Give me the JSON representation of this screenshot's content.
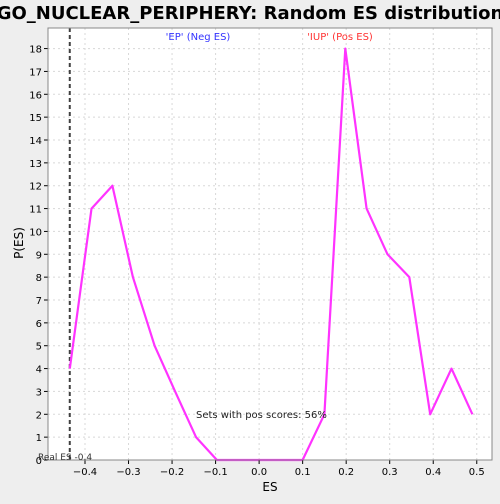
{
  "colors": {
    "background": "#eeeeee",
    "plot_background": "#ffffff",
    "line": "#ff33ff",
    "neg_label": "#3333ff",
    "pos_label": "#ff3333",
    "grid": "#d8d8d8",
    "marker_line": "#404040"
  },
  "chart_data": {
    "type": "line",
    "title": "GO_NUCLEAR_PERIPHERY: Random ES distribution",
    "xlabel": "ES",
    "ylabel": "P(ES)",
    "xlim": [
      -0.485,
      0.535
    ],
    "ylim": [
      0,
      18.9
    ],
    "grid": true,
    "x_ticks": [
      -0.4,
      -0.3,
      -0.2,
      -0.1,
      0.0,
      0.1,
      0.2,
      0.3,
      0.4,
      0.5
    ],
    "x_tick_labels": [
      "−0.4",
      "−0.3",
      "−0.2",
      "−0.1",
      "0.0",
      "0.1",
      "0.2",
      "0.3",
      "0.4",
      "0.5"
    ],
    "y_ticks": [
      0,
      1,
      2,
      3,
      4,
      5,
      6,
      7,
      8,
      9,
      10,
      11,
      12,
      13,
      14,
      15,
      16,
      17,
      18
    ],
    "series": [
      {
        "x": [
          -0.435,
          -0.385,
          -0.337,
          -0.29,
          -0.24,
          -0.193,
          -0.145,
          -0.097,
          -0.048,
          0.0,
          0.1,
          0.15,
          0.198,
          0.247,
          0.295,
          0.345,
          0.393,
          0.442,
          0.49
        ],
        "y": [
          4,
          11,
          12,
          8,
          5,
          3,
          1,
          0,
          0,
          0,
          0,
          2,
          18,
          11,
          9,
          8,
          2,
          4,
          2
        ]
      }
    ],
    "real_es": -0.435,
    "annotations": {
      "neg_label": "'EP' (Neg ES)",
      "pos_label": "'IUP' (Pos ES)",
      "pos_scores": "Sets with pos scores: 56%",
      "real_es_label": "Real ES -0.4"
    }
  }
}
